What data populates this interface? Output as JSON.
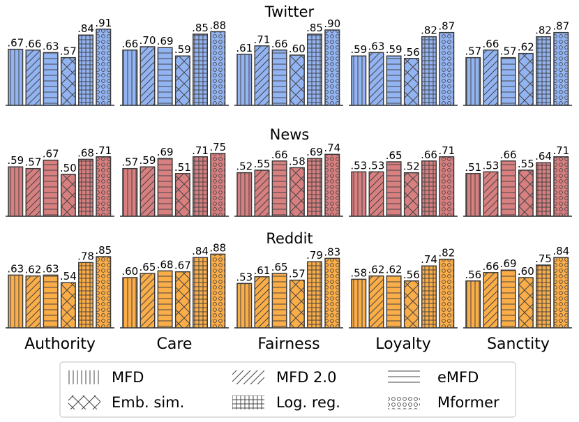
{
  "chart_data": {
    "type": "bar",
    "categories": [
      "Authority",
      "Care",
      "Fairness",
      "Loyalty",
      "Sanctity"
    ],
    "methods": [
      "MFD",
      "MFD 2.0",
      "eMFD",
      "Emb. sim.",
      "Log. reg.",
      "Mformer"
    ],
    "ylim": [
      0,
      1
    ],
    "rows": [
      {
        "title": "Twitter",
        "color": "#93b4f3",
        "values": [
          [
            67,
            66,
            63,
            57,
            84,
            91
          ],
          [
            66,
            70,
            69,
            59,
            85,
            88
          ],
          [
            61,
            71,
            66,
            60,
            85,
            90
          ],
          [
            59,
            63,
            59,
            56,
            82,
            87
          ],
          [
            57,
            66,
            57,
            62,
            82,
            87
          ]
        ],
        "labels": [
          [
            ".67",
            ".66",
            ".63",
            ".57",
            ".84",
            ".91"
          ],
          [
            ".66",
            ".70",
            ".69",
            ".59",
            ".85",
            ".88"
          ],
          [
            ".61",
            ".71",
            ".66",
            ".60",
            ".85",
            ".90"
          ],
          [
            ".59",
            ".63",
            ".59",
            ".56",
            ".82",
            ".87"
          ],
          [
            ".57",
            ".66",
            ".57",
            ".62",
            ".82",
            ".87"
          ]
        ]
      },
      {
        "title": "News",
        "color": "#d87f80",
        "values": [
          [
            59,
            57,
            67,
            50,
            68,
            71
          ],
          [
            57,
            59,
            69,
            51,
            71,
            75
          ],
          [
            52,
            55,
            66,
            58,
            69,
            74
          ],
          [
            53,
            53,
            65,
            52,
            66,
            71
          ],
          [
            51,
            53,
            66,
            55,
            64,
            71
          ]
        ],
        "labels": [
          [
            ".59",
            ".57",
            ".67",
            ".50",
            ".68",
            ".71"
          ],
          [
            ".57",
            ".59",
            ".69",
            ".51",
            ".71",
            ".75"
          ],
          [
            ".52",
            ".55",
            ".66",
            ".58",
            ".69",
            ".74"
          ],
          [
            ".53",
            ".53",
            ".65",
            ".52",
            ".66",
            ".71"
          ],
          [
            ".51",
            ".53",
            ".66",
            ".55",
            ".64",
            ".71"
          ]
        ]
      },
      {
        "title": "Reddit",
        "color": "#fbad48",
        "values": [
          [
            63,
            62,
            63,
            54,
            78,
            85
          ],
          [
            60,
            65,
            68,
            67,
            84,
            88
          ],
          [
            53,
            61,
            65,
            57,
            79,
            83
          ],
          [
            58,
            62,
            62,
            56,
            74,
            82
          ],
          [
            56,
            66,
            69,
            60,
            75,
            84
          ]
        ],
        "labels": [
          [
            ".63",
            ".62",
            ".63",
            ".54",
            ".78",
            ".85"
          ],
          [
            ".60",
            ".65",
            ".68",
            ".67",
            ".84",
            ".88"
          ],
          [
            ".53",
            ".61",
            ".65",
            ".57",
            ".79",
            ".83"
          ],
          [
            ".58",
            ".62",
            ".62",
            ".56",
            ".74",
            ".82"
          ],
          [
            ".56",
            ".66",
            ".69",
            ".60",
            ".75",
            ".84"
          ]
        ]
      }
    ],
    "legend": [
      {
        "label": "MFD",
        "pattern": "vertical"
      },
      {
        "label": "MFD 2.0",
        "pattern": "diagonal"
      },
      {
        "label": "eMFD",
        "pattern": "horizontal"
      },
      {
        "label": "Emb. sim.",
        "pattern": "cross"
      },
      {
        "label": "Log. reg.",
        "pattern": "grid"
      },
      {
        "label": "Mformer",
        "pattern": "circles"
      }
    ],
    "legend_position": "bottom"
  }
}
